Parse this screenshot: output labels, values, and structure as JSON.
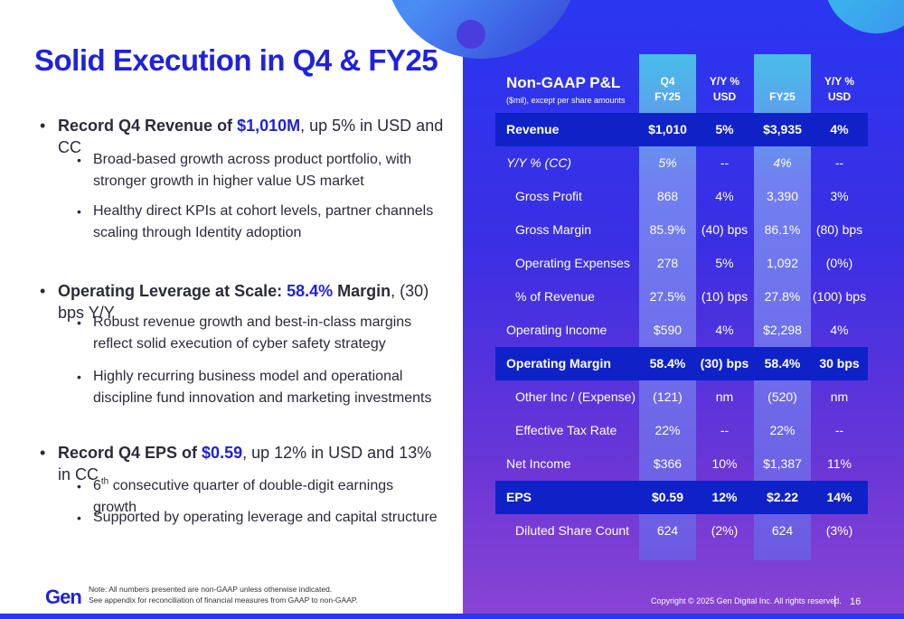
{
  "slide": {
    "title": "Solid Execution in Q4 & FY25",
    "page_number": "16",
    "copyright": "Copyright © 2025 Gen Digital Inc. All rights reserved.",
    "logo": "Gen",
    "footnote_line1": "Note: All numbers presented are non-GAAP unless otherwise indicated.",
    "footnote_line2": "See appendix for reconciliation of financial measures from GAAP to non-GAAP.",
    "colors": {
      "brand_blue": "#1f22dc",
      "panel_start": "#2a36f0",
      "panel_end": "#8a44d4",
      "highlight_row": "#0f22c8"
    }
  },
  "bullets": {
    "b1_pre": "Record Q4 Revenue of ",
    "b1_hl": "$1,010M",
    "b1_post": ", up 5% in USD and CC",
    "b1_s1": "Broad-based growth across product portfolio, with stronger growth in higher value US market",
    "b1_s2": "Healthy direct KPIs at cohort levels, partner channels scaling through Identity adoption",
    "b2_pre": "Operating Leverage at Scale: ",
    "b2_hl": "58.4%",
    "b2_mid": " Margin",
    "b2_post": ", (30) bps Y/Y",
    "b2_s1": "Robust revenue growth and best-in-class margins reflect solid execution of cyber safety strategy",
    "b2_s2": "Highly recurring business model and operational discipline fund innovation and marketing investments",
    "b3_pre": "Record Q4 EPS of ",
    "b3_hl": "$0.59",
    "b3_post": ", up 12% in USD and 13% in CC",
    "b3_s1_pre": "6",
    "b3_s1_sup": "th",
    "b3_s1_post": " consecutive quarter of double-digit earnings growth",
    "b3_s2": "Supported by operating leverage and capital structure"
  },
  "table": {
    "title": "Non-GAAP P&L",
    "subtitle": "($mil), except per share amounts",
    "headers": {
      "q4_line1": "Q4",
      "q4_line2": "FY25",
      "yy1_line1": "Y/Y %",
      "yy1_line2": "USD",
      "fy_line1": "",
      "fy_line2": "FY25",
      "yy2_line1": "Y/Y %",
      "yy2_line2": "USD"
    },
    "rows": [
      {
        "label": "Revenue",
        "q4": "$1,010",
        "yy1": "5%",
        "fy": "$3,935",
        "yy2": "4%"
      },
      {
        "label": "Y/Y % (CC)",
        "q4": "5%",
        "yy1": "--",
        "fy": "4%",
        "yy2": "--"
      },
      {
        "label": "Gross Profit",
        "q4": "868",
        "yy1": "4%",
        "fy": "3,390",
        "yy2": "3%"
      },
      {
        "label": "Gross Margin",
        "q4": "85.9%",
        "yy1": "(40) bps",
        "fy": "86.1%",
        "yy2": "(80) bps"
      },
      {
        "label": "Operating Expenses",
        "q4": "278",
        "yy1": "5%",
        "fy": "1,092",
        "yy2": "(0%)"
      },
      {
        "label": "% of Revenue",
        "q4": "27.5%",
        "yy1": "(10) bps",
        "fy": "27.8%",
        "yy2": "(100) bps"
      },
      {
        "label": "Operating Income",
        "q4": "$590",
        "yy1": "4%",
        "fy": "$2,298",
        "yy2": "4%"
      },
      {
        "label": "Operating Margin",
        "q4": "58.4%",
        "yy1": "(30) bps",
        "fy": "58.4%",
        "yy2": "30 bps"
      },
      {
        "label": "Other Inc / (Expense)",
        "q4": "(121)",
        "yy1": "nm",
        "fy": "(520)",
        "yy2": "nm"
      },
      {
        "label": "Effective Tax Rate",
        "q4": "22%",
        "yy1": "--",
        "fy": "22%",
        "yy2": "--"
      },
      {
        "label": "Net Income",
        "q4": "$366",
        "yy1": "10%",
        "fy": "$1,387",
        "yy2": "11%"
      },
      {
        "label": "EPS",
        "q4": "$0.59",
        "yy1": "12%",
        "fy": "$2.22",
        "yy2": "14%"
      },
      {
        "label": "Diluted Share Count",
        "q4": "624",
        "yy1": "(2%)",
        "fy": "624",
        "yy2": "(3%)"
      }
    ]
  }
}
